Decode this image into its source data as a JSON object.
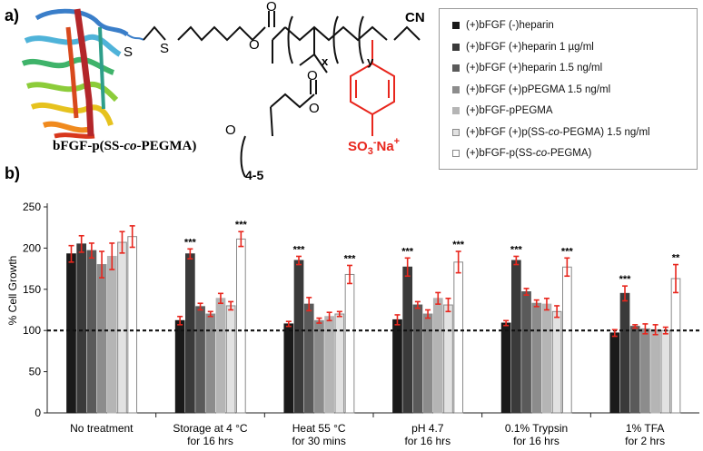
{
  "panel_a": {
    "label": "a)",
    "linker_label": "S",
    "linker_label2": "S",
    "x_sub": "x",
    "y_sub": "y",
    "cn_label": "CN",
    "oxygen_label": "O",
    "repeat_label": "4-5",
    "sulfonate_label": "SO",
    "sulfonate_sub": "3",
    "sulfonate_sup": "-",
    "sodium_label": "Na",
    "sodium_sup": "+",
    "caption_pre": "bFGF-p(SS-",
    "caption_italic": "co",
    "caption_post": "-PEGMA)",
    "accent_color": "#e8261d"
  },
  "panel_b": {
    "label": "b)"
  },
  "legend": [
    {
      "label": "(+)bFGF (-)heparin",
      "color": "#1a1a1a",
      "outline": "#1a1a1a"
    },
    {
      "label": "(+)bFGF (+)heparin 1 µg/ml",
      "color": "#3a3a3a",
      "outline": "#3a3a3a"
    },
    {
      "label": "(+)bFGF (+)heparin 1.5 ng/ml",
      "color": "#5a5a5a",
      "outline": "#5a5a5a"
    },
    {
      "label": "(+)bFGF (+)pPEGMA 1.5 ng/ml",
      "color": "#8c8c8c",
      "outline": "#8c8c8c"
    },
    {
      "label": "(+)bFGF-pPEGMA",
      "color": "#b5b5b5",
      "outline": "#b5b5b5"
    },
    {
      "label_pre": "(+)bFGF (+)p(SS-",
      "label_italic": "co",
      "label_post": "-PEGMA) 1.5 ng/ml",
      "color": "#e2e2e2",
      "outline": "#8a8a8a"
    },
    {
      "label_pre": "(+)bFGF-p(SS-",
      "label_italic": "co",
      "label_post": "-PEGMA)",
      "color": "#ffffff",
      "outline": "#8a8a8a"
    }
  ],
  "chart_data": {
    "type": "bar",
    "title": "",
    "ylabel": "% Cell Growth",
    "xlabel": "",
    "ylim": [
      0,
      250
    ],
    "yticks": [
      0,
      50,
      100,
      150,
      200,
      250
    ],
    "reference_line": 100,
    "grid": false,
    "legend_position": "top-right",
    "error_bar_color": "#e8261d",
    "categories": [
      [
        "No treatment"
      ],
      [
        "Storage at 4 °C",
        "for 16 hrs"
      ],
      [
        "Heat 55 °C",
        "for 30 mins"
      ],
      [
        "pH 4.7",
        "for 16 hrs"
      ],
      [
        "0.1% Trypsin",
        "for 16 hrs"
      ],
      [
        "1% TFA",
        "for 2 hrs"
      ]
    ],
    "series": [
      {
        "name": "(+)bFGF (-)heparin",
        "values": [
          193,
          112,
          108,
          113,
          109,
          97
        ],
        "errors": [
          10,
          5,
          3,
          6,
          3,
          4
        ]
      },
      {
        "name": "(+)bFGF (+)heparin 1 µg/ml",
        "values": [
          205,
          193,
          185,
          177,
          185,
          145
        ],
        "errors": [
          10,
          6,
          5,
          11,
          5,
          9
        ]
      },
      {
        "name": "(+)bFGF (+)heparin 1.5 ng/ml",
        "values": [
          197,
          129,
          132,
          131,
          147,
          105
        ],
        "errors": [
          9,
          4,
          8,
          4,
          4,
          2
        ]
      },
      {
        "name": "(+)bFGF (+)pPEGMA 1.5 ng/ml",
        "values": [
          180,
          120,
          112,
          120,
          133,
          102
        ],
        "errors": [
          16,
          3,
          3,
          5,
          4,
          6
        ]
      },
      {
        "name": "(+)bFGF-pPEGMA",
        "values": [
          190,
          139,
          117,
          139,
          132,
          101
        ],
        "errors": [
          16,
          6,
          5,
          7,
          7,
          6
        ]
      },
      {
        "name": "(+)bFGF (+)p(SS-co-PEGMA) 1.5 ng/ml",
        "values": [
          207,
          130,
          120,
          131,
          123,
          100
        ],
        "errors": [
          13,
          5,
          3,
          8,
          7,
          4
        ]
      },
      {
        "name": "(+)bFGF-p(SS-co-PEGMA)",
        "values": [
          214,
          211,
          168,
          183,
          177,
          163
        ],
        "errors": [
          13,
          9,
          11,
          13,
          11,
          17
        ]
      }
    ],
    "annotations": [
      {
        "category": 1,
        "series": 1,
        "text": "***"
      },
      {
        "category": 1,
        "series": 6,
        "text": "***"
      },
      {
        "category": 2,
        "series": 1,
        "text": "***"
      },
      {
        "category": 2,
        "series": 6,
        "text": "***"
      },
      {
        "category": 3,
        "series": 1,
        "text": "***"
      },
      {
        "category": 3,
        "series": 6,
        "text": "***"
      },
      {
        "category": 4,
        "series": 1,
        "text": "***"
      },
      {
        "category": 4,
        "series": 6,
        "text": "***"
      },
      {
        "category": 5,
        "series": 1,
        "text": "***"
      },
      {
        "category": 5,
        "series": 6,
        "text": "**"
      }
    ]
  }
}
